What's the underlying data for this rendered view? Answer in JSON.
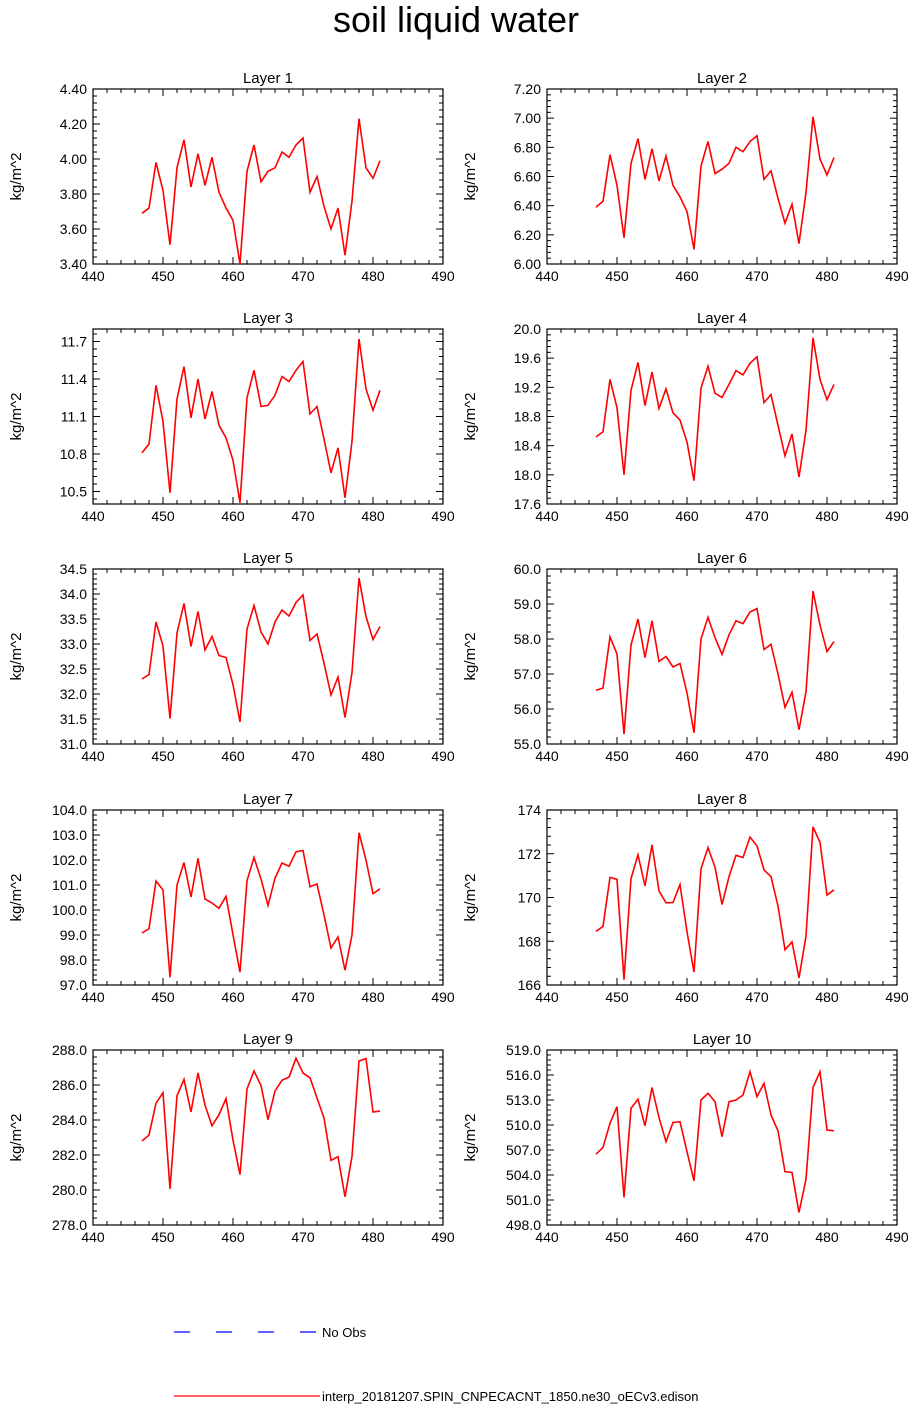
{
  "title": "soil liquid water",
  "chart_data": [
    {
      "type": "line",
      "title": "Layer 1",
      "ylabel": "kg/m^2",
      "xlim": [
        440,
        490
      ],
      "ylim": [
        3.4,
        4.4
      ],
      "xticks": [
        440,
        450,
        460,
        470,
        480,
        490
      ],
      "yticks": [
        "3.40",
        "3.60",
        "3.80",
        "4.00",
        "4.20",
        "4.40"
      ],
      "x": [
        447,
        448,
        449,
        450,
        451,
        452,
        453,
        454,
        455,
        456,
        457,
        458,
        459,
        460,
        461,
        462,
        463,
        464,
        465,
        466,
        467,
        468,
        469,
        470,
        471,
        472,
        473,
        474,
        475,
        476,
        477,
        478,
        479,
        480,
        481
      ],
      "values": [
        3.69,
        3.72,
        3.98,
        3.82,
        3.51,
        3.95,
        4.11,
        3.84,
        4.03,
        3.85,
        4.01,
        3.81,
        3.72,
        3.65,
        3.4,
        3.93,
        4.08,
        3.87,
        3.93,
        3.95,
        4.04,
        4.01,
        4.08,
        4.12,
        3.81,
        3.9,
        3.73,
        3.6,
        3.72,
        3.45,
        3.76,
        4.23,
        3.95,
        3.89,
        3.99
      ]
    },
    {
      "type": "line",
      "title": "Layer 2",
      "ylabel": "kg/m^2",
      "xlim": [
        440,
        490
      ],
      "ylim": [
        6.0,
        7.2
      ],
      "xticks": [
        440,
        450,
        460,
        470,
        480,
        490
      ],
      "yticks": [
        "6.00",
        "6.20",
        "6.40",
        "6.60",
        "6.80",
        "7.00",
        "7.20"
      ],
      "x": [
        447,
        448,
        449,
        450,
        451,
        452,
        453,
        454,
        455,
        456,
        457,
        458,
        459,
        460,
        461,
        462,
        463,
        464,
        465,
        466,
        467,
        468,
        469,
        470,
        471,
        472,
        473,
        474,
        475,
        476,
        477,
        478,
        479,
        480,
        481
      ],
      "values": [
        6.39,
        6.43,
        6.75,
        6.54,
        6.18,
        6.69,
        6.86,
        6.58,
        6.79,
        6.57,
        6.74,
        6.54,
        6.46,
        6.36,
        6.1,
        6.67,
        6.84,
        6.62,
        6.65,
        6.69,
        6.8,
        6.77,
        6.84,
        6.88,
        6.58,
        6.64,
        6.45,
        6.28,
        6.41,
        6.14,
        6.49,
        7.01,
        6.72,
        6.61,
        6.73
      ]
    },
    {
      "type": "line",
      "title": "Layer 3",
      "ylabel": "kg/m^2",
      "xlim": [
        440,
        490
      ],
      "ylim": [
        10.4,
        11.8
      ],
      "xticks": [
        440,
        450,
        460,
        470,
        480,
        490
      ],
      "yticks": [
        "10.5",
        "10.8",
        "11.1",
        "11.4",
        "11.7"
      ],
      "x": [
        447,
        448,
        449,
        450,
        451,
        452,
        453,
        454,
        455,
        456,
        457,
        458,
        459,
        460,
        461,
        462,
        463,
        464,
        465,
        466,
        467,
        468,
        469,
        470,
        471,
        472,
        473,
        474,
        475,
        476,
        477,
        478,
        479,
        480,
        481
      ],
      "values": [
        10.81,
        10.88,
        11.35,
        11.06,
        10.49,
        11.24,
        11.5,
        11.09,
        11.4,
        11.08,
        11.3,
        11.03,
        10.93,
        10.75,
        10.41,
        11.25,
        11.47,
        11.18,
        11.19,
        11.27,
        11.42,
        11.38,
        11.47,
        11.54,
        11.12,
        11.18,
        10.92,
        10.65,
        10.85,
        10.45,
        10.9,
        11.72,
        11.32,
        11.15,
        11.31
      ]
    },
    {
      "type": "line",
      "title": "Layer 4",
      "ylabel": "kg/m^2",
      "xlim": [
        440,
        490
      ],
      "ylim": [
        17.6,
        20.0
      ],
      "xticks": [
        440,
        450,
        460,
        470,
        480,
        490
      ],
      "yticks": [
        "17.6",
        "18.0",
        "18.4",
        "18.8",
        "19.2",
        "19.6",
        "20.0"
      ],
      "x": [
        447,
        448,
        449,
        450,
        451,
        452,
        453,
        454,
        455,
        456,
        457,
        458,
        459,
        460,
        461,
        462,
        463,
        464,
        465,
        466,
        467,
        468,
        469,
        470,
        471,
        472,
        473,
        474,
        475,
        476,
        477,
        478,
        479,
        480,
        481
      ],
      "values": [
        18.52,
        18.59,
        19.31,
        18.92,
        18.0,
        19.16,
        19.54,
        18.95,
        19.41,
        18.91,
        19.18,
        18.85,
        18.75,
        18.45,
        17.92,
        19.19,
        19.49,
        19.12,
        19.06,
        19.24,
        19.43,
        19.37,
        19.53,
        19.62,
        18.99,
        19.1,
        18.68,
        18.26,
        18.56,
        17.97,
        18.61,
        19.88,
        19.31,
        19.03,
        19.24
      ]
    },
    {
      "type": "line",
      "title": "Layer 5",
      "ylabel": "kg/m^2",
      "xlim": [
        440,
        490
      ],
      "ylim": [
        31.0,
        34.5
      ],
      "xticks": [
        440,
        450,
        460,
        470,
        480,
        490
      ],
      "yticks": [
        "31.0",
        "31.5",
        "32.0",
        "32.5",
        "33.0",
        "33.5",
        "34.0",
        "34.5"
      ],
      "x": [
        447,
        448,
        449,
        450,
        451,
        452,
        453,
        454,
        455,
        456,
        457,
        458,
        459,
        460,
        461,
        462,
        463,
        464,
        465,
        466,
        467,
        468,
        469,
        470,
        471,
        472,
        473,
        474,
        475,
        476,
        477,
        478,
        479,
        480,
        481
      ],
      "values": [
        32.3,
        32.39,
        33.44,
        32.96,
        31.51,
        33.22,
        33.81,
        32.95,
        33.65,
        32.88,
        33.15,
        32.77,
        32.73,
        32.19,
        31.44,
        33.3,
        33.77,
        33.24,
        33.0,
        33.44,
        33.68,
        33.56,
        33.83,
        33.98,
        33.07,
        33.2,
        32.62,
        31.98,
        32.34,
        31.53,
        32.43,
        34.32,
        33.55,
        33.09,
        33.35
      ]
    },
    {
      "type": "line",
      "title": "Layer 6",
      "ylabel": "kg/m^2",
      "xlim": [
        440,
        490
      ],
      "ylim": [
        55.0,
        60.0
      ],
      "xticks": [
        440,
        450,
        460,
        470,
        480,
        490
      ],
      "yticks": [
        "55.0",
        "56.0",
        "57.0",
        "58.0",
        "59.0",
        "60.0"
      ],
      "x": [
        447,
        448,
        449,
        450,
        451,
        452,
        453,
        454,
        455,
        456,
        457,
        458,
        459,
        460,
        461,
        462,
        463,
        464,
        465,
        466,
        467,
        468,
        469,
        470,
        471,
        472,
        473,
        474,
        475,
        476,
        477,
        478,
        479,
        480,
        481
      ],
      "values": [
        56.53,
        56.6,
        58.06,
        57.57,
        55.28,
        57.83,
        58.57,
        57.47,
        58.52,
        57.36,
        57.5,
        57.2,
        57.3,
        56.46,
        55.32,
        58.0,
        58.62,
        58.04,
        57.56,
        58.12,
        58.52,
        58.44,
        58.77,
        58.87,
        57.7,
        57.85,
        57.0,
        56.05,
        56.48,
        55.41,
        56.49,
        59.37,
        58.4,
        57.64,
        57.93
      ]
    },
    {
      "type": "line",
      "title": "Layer 7",
      "ylabel": "kg/m^2",
      "xlim": [
        440,
        490
      ],
      "ylim": [
        97.0,
        104.0
      ],
      "xticks": [
        440,
        450,
        460,
        470,
        480,
        490
      ],
      "yticks": [
        "97.0",
        "98.0",
        "99.0",
        "100.0",
        "101.0",
        "102.0",
        "103.0",
        "104.0"
      ],
      "x": [
        447,
        448,
        449,
        450,
        451,
        452,
        453,
        454,
        455,
        456,
        457,
        458,
        459,
        460,
        461,
        462,
        463,
        464,
        465,
        466,
        467,
        468,
        469,
        470,
        471,
        472,
        473,
        474,
        475,
        476,
        477,
        478,
        479,
        480,
        481
      ],
      "values": [
        99.08,
        99.25,
        101.16,
        100.8,
        97.31,
        101.0,
        101.9,
        100.52,
        102.07,
        100.44,
        100.28,
        100.07,
        100.55,
        99.01,
        97.51,
        101.17,
        102.1,
        101.24,
        100.18,
        101.27,
        101.88,
        101.75,
        102.33,
        102.38,
        100.93,
        101.04,
        99.8,
        98.48,
        98.92,
        97.59,
        99.0,
        103.09,
        102.0,
        100.65,
        100.85
      ]
    },
    {
      "type": "line",
      "title": "Layer 8",
      "ylabel": "kg/m^2",
      "xlim": [
        440,
        490
      ],
      "ylim": [
        166,
        174
      ],
      "xticks": [
        440,
        450,
        460,
        470,
        480,
        490
      ],
      "yticks": [
        "166",
        "168",
        "170",
        "172",
        "174"
      ],
      "x": [
        447,
        448,
        449,
        450,
        451,
        452,
        453,
        454,
        455,
        456,
        457,
        458,
        459,
        460,
        461,
        462,
        463,
        464,
        465,
        466,
        467,
        468,
        469,
        470,
        471,
        472,
        473,
        474,
        475,
        476,
        477,
        478,
        479,
        480,
        481
      ],
      "values": [
        168.45,
        168.68,
        170.92,
        170.83,
        166.24,
        170.86,
        171.95,
        170.53,
        172.41,
        170.3,
        169.76,
        169.77,
        170.59,
        168.43,
        166.59,
        171.31,
        172.28,
        171.39,
        169.68,
        170.95,
        171.93,
        171.83,
        172.76,
        172.36,
        171.26,
        170.95,
        169.61,
        167.61,
        167.97,
        166.32,
        168.23,
        173.23,
        172.52,
        170.11,
        170.35
      ]
    },
    {
      "type": "line",
      "title": "Layer 9",
      "ylabel": "kg/m^2",
      "xlim": [
        440,
        490
      ],
      "ylim": [
        278,
        288
      ],
      "xticks": [
        440,
        450,
        460,
        470,
        480,
        490
      ],
      "yticks": [
        "278.0",
        "280.0",
        "282.0",
        "284.0",
        "286.0",
        "288.0"
      ],
      "x": [
        447,
        448,
        449,
        450,
        451,
        452,
        453,
        454,
        455,
        456,
        457,
        458,
        459,
        460,
        461,
        462,
        463,
        464,
        465,
        466,
        467,
        468,
        469,
        470,
        471,
        472,
        473,
        474,
        475,
        476,
        477,
        478,
        479,
        480,
        481
      ],
      "values": [
        282.8,
        283.14,
        284.96,
        285.56,
        280.06,
        285.39,
        286.32,
        284.46,
        286.69,
        284.85,
        283.67,
        284.3,
        285.22,
        282.85,
        280.88,
        285.78,
        286.8,
        285.97,
        284.02,
        285.65,
        286.27,
        286.45,
        287.53,
        286.68,
        286.41,
        285.26,
        284.12,
        281.69,
        281.91,
        279.61,
        281.92,
        287.37,
        287.51,
        284.46,
        284.51
      ]
    },
    {
      "type": "line",
      "title": "Layer 10",
      "ylabel": "kg/m^2",
      "xlim": [
        440,
        490
      ],
      "ylim": [
        498,
        519
      ],
      "xticks": [
        440,
        450,
        460,
        470,
        480,
        490
      ],
      "yticks": [
        "498.0",
        "501.0",
        "504.0",
        "507.0",
        "510.0",
        "513.0",
        "516.0",
        "519.0"
      ],
      "x": [
        447,
        448,
        449,
        450,
        451,
        452,
        453,
        454,
        455,
        456,
        457,
        458,
        459,
        460,
        461,
        462,
        463,
        464,
        465,
        466,
        467,
        468,
        469,
        470,
        471,
        472,
        473,
        474,
        475,
        476,
        477,
        478,
        479,
        480,
        481
      ],
      "values": [
        506.5,
        507.3,
        510.2,
        512.2,
        501.3,
        512.0,
        513.1,
        509.9,
        514.5,
        510.9,
        508.0,
        510.3,
        510.4,
        506.8,
        503.3,
        513.0,
        513.8,
        512.8,
        508.6,
        512.8,
        513.0,
        513.6,
        516.4,
        513.4,
        515.0,
        511.2,
        509.3,
        504.4,
        504.3,
        499.5,
        503.5,
        514.5,
        516.4,
        509.4,
        509.3
      ]
    }
  ],
  "legend": {
    "entries": [
      {
        "label": "No Obs",
        "color": "#0000ff",
        "style": "dashed"
      },
      {
        "label": "interp_20181207.SPIN_CNPECACNT_1850.ne30_oECv3.edison",
        "color": "#ff0000",
        "style": "solid"
      }
    ]
  }
}
